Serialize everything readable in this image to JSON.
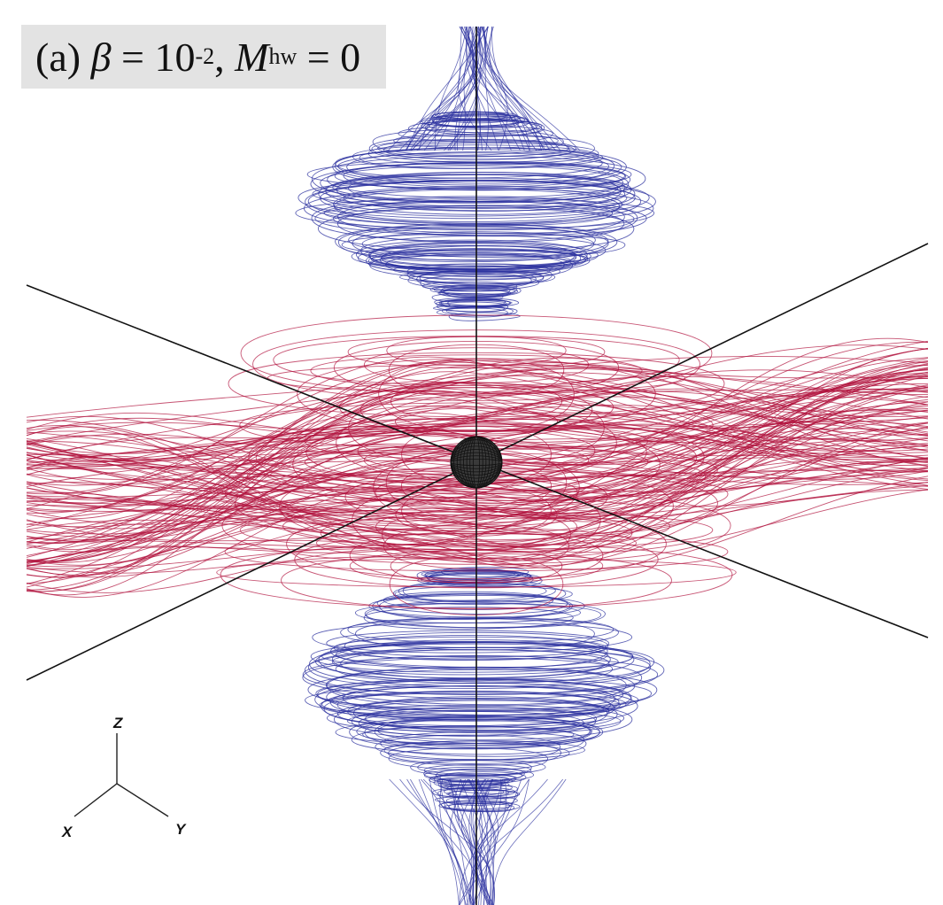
{
  "figure": {
    "panel": "(a)",
    "beta_symbol": "β",
    "equals": "=",
    "beta_base": "10",
    "beta_exp": "-2",
    "comma": ",",
    "mach_symbol": "M",
    "mach_sub": "hw",
    "mach_value": "0"
  },
  "axes_triad": {
    "x": "X",
    "y": "Y",
    "z": "Z"
  },
  "colors": {
    "background": "#ffffff",
    "toroidal_field_lines": "#2a2f9e",
    "poloidal_field_lines": "#b0103c",
    "axes": "#111111",
    "central_sphere": "#111111",
    "label_box": "#e3e3e3"
  }
}
